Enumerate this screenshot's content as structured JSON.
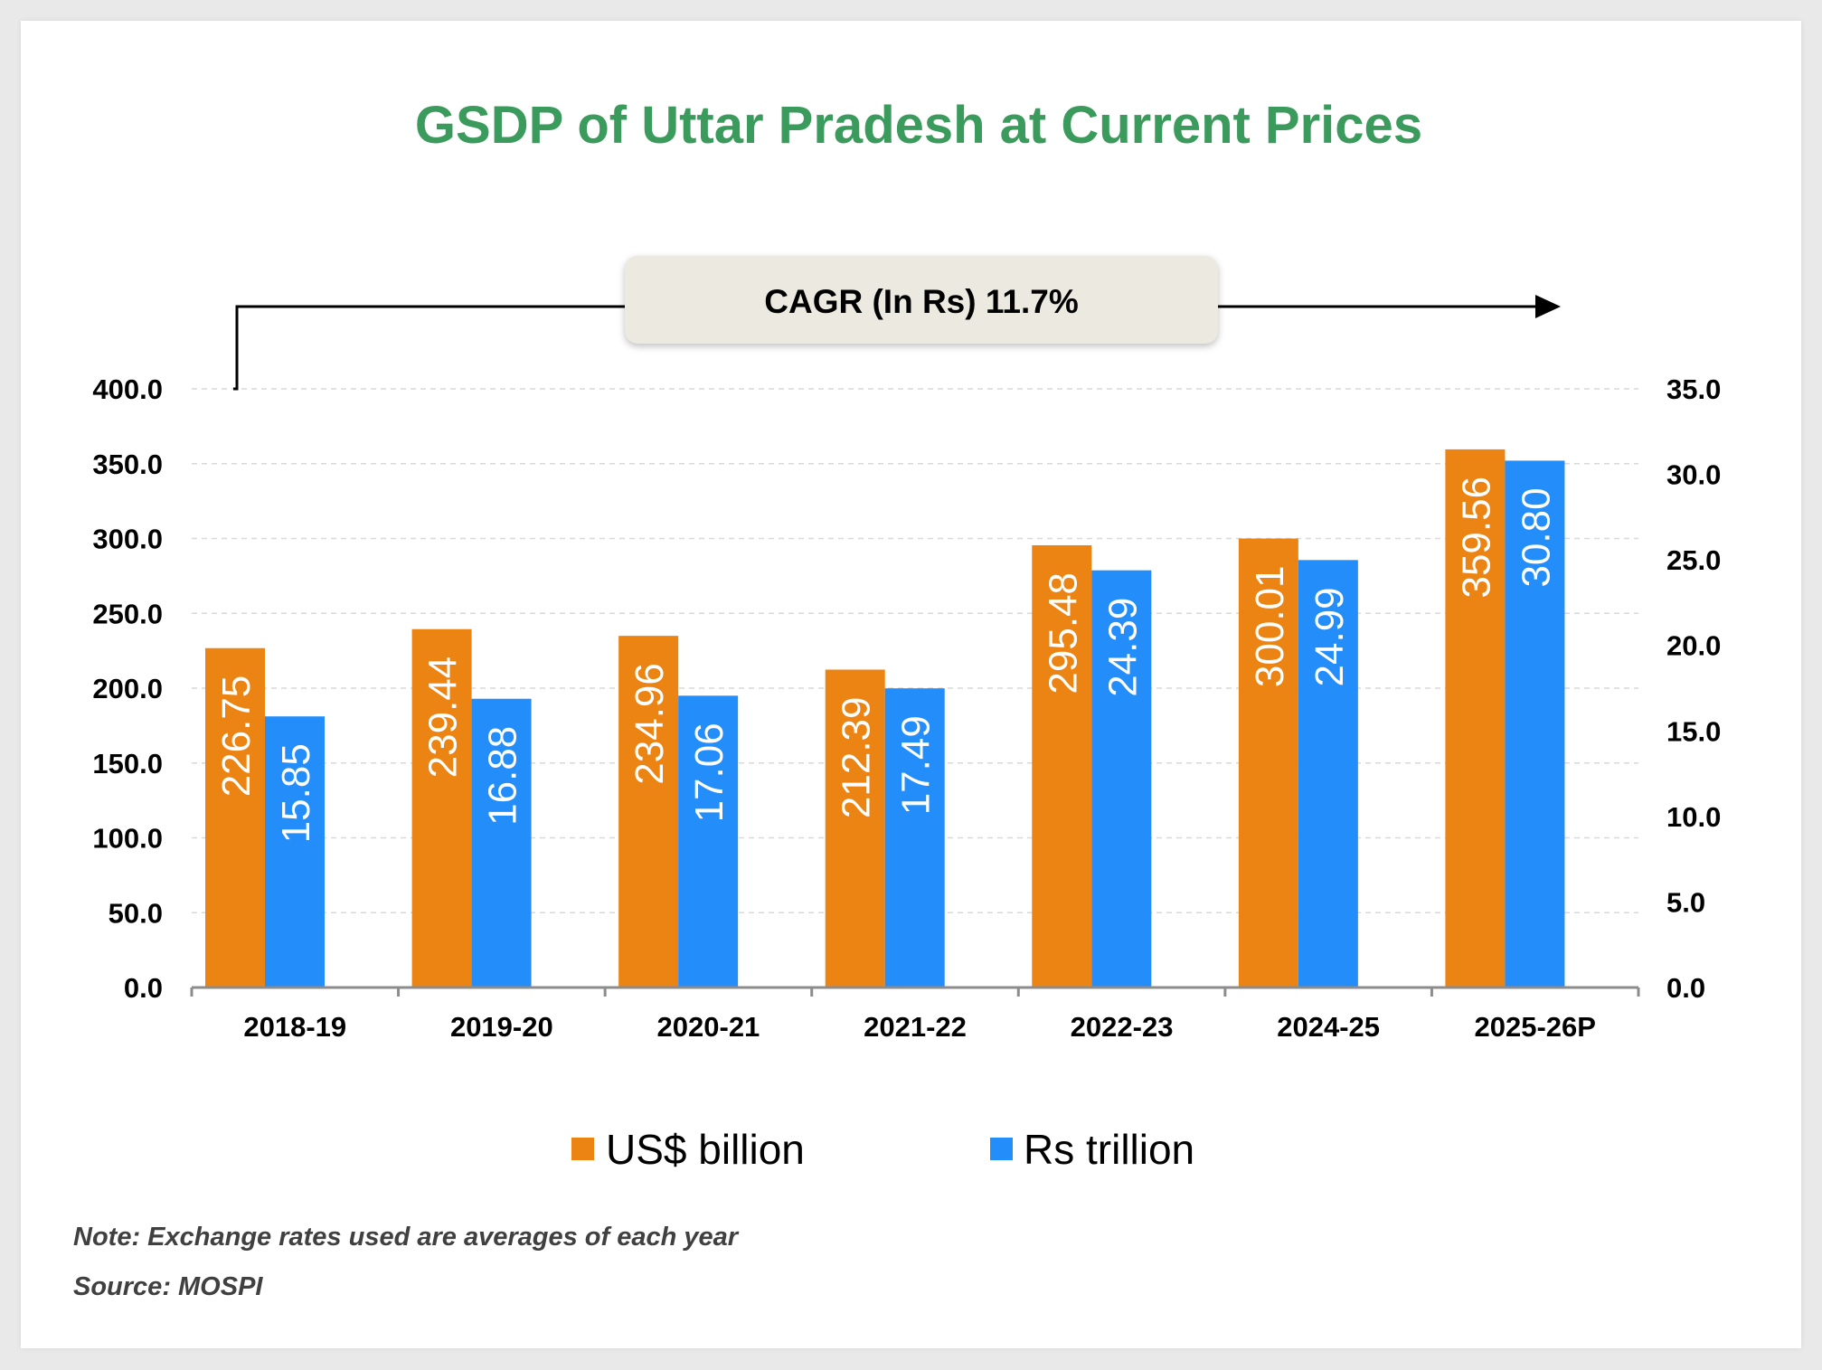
{
  "chart_data": {
    "type": "bar",
    "title": "GSDP of Uttar Pradesh at Current Prices",
    "categories": [
      "2018-19",
      "2019-20",
      "2020-21",
      "2021-22",
      "2022-23",
      "2024-25",
      "2025-26P"
    ],
    "series": [
      {
        "name": "US$ billion",
        "axis": "left",
        "color": "#EB8413",
        "values": [
          226.75,
          239.44,
          234.96,
          212.39,
          295.48,
          300.01,
          359.56
        ],
        "labels": [
          "226.75",
          "239.44",
          "234.96",
          "212.39",
          "295.48",
          "300.01",
          "359.56"
        ]
      },
      {
        "name": "Rs trillion",
        "axis": "right",
        "color": "#238DF9",
        "values": [
          15.85,
          16.88,
          17.06,
          17.49,
          24.39,
          24.99,
          30.8
        ],
        "labels": [
          "15.85",
          "16.88",
          "17.06",
          "17.49",
          "24.39",
          "24.99",
          "30.80"
        ]
      }
    ],
    "left_axis": {
      "ylim": [
        0,
        400
      ],
      "ticks": [
        "0.0",
        "50.0",
        "100.0",
        "150.0",
        "200.0",
        "250.0",
        "300.0",
        "350.0",
        "400.0"
      ]
    },
    "right_axis": {
      "ylim": [
        0,
        35
      ],
      "ticks": [
        "0.0",
        "5.0",
        "10.0",
        "15.0",
        "20.0",
        "25.0",
        "30.0",
        "35.0"
      ]
    },
    "grid": true,
    "legend_position": "bottom",
    "annotation": "CAGR (In Rs) 11.7%",
    "title_color": "#3A9B5C",
    "annotation_box_color": "#ECEAE0"
  },
  "notes": {
    "note": "Note: Exchange rates used are averages of each year",
    "source": "Source: MOSPI"
  }
}
